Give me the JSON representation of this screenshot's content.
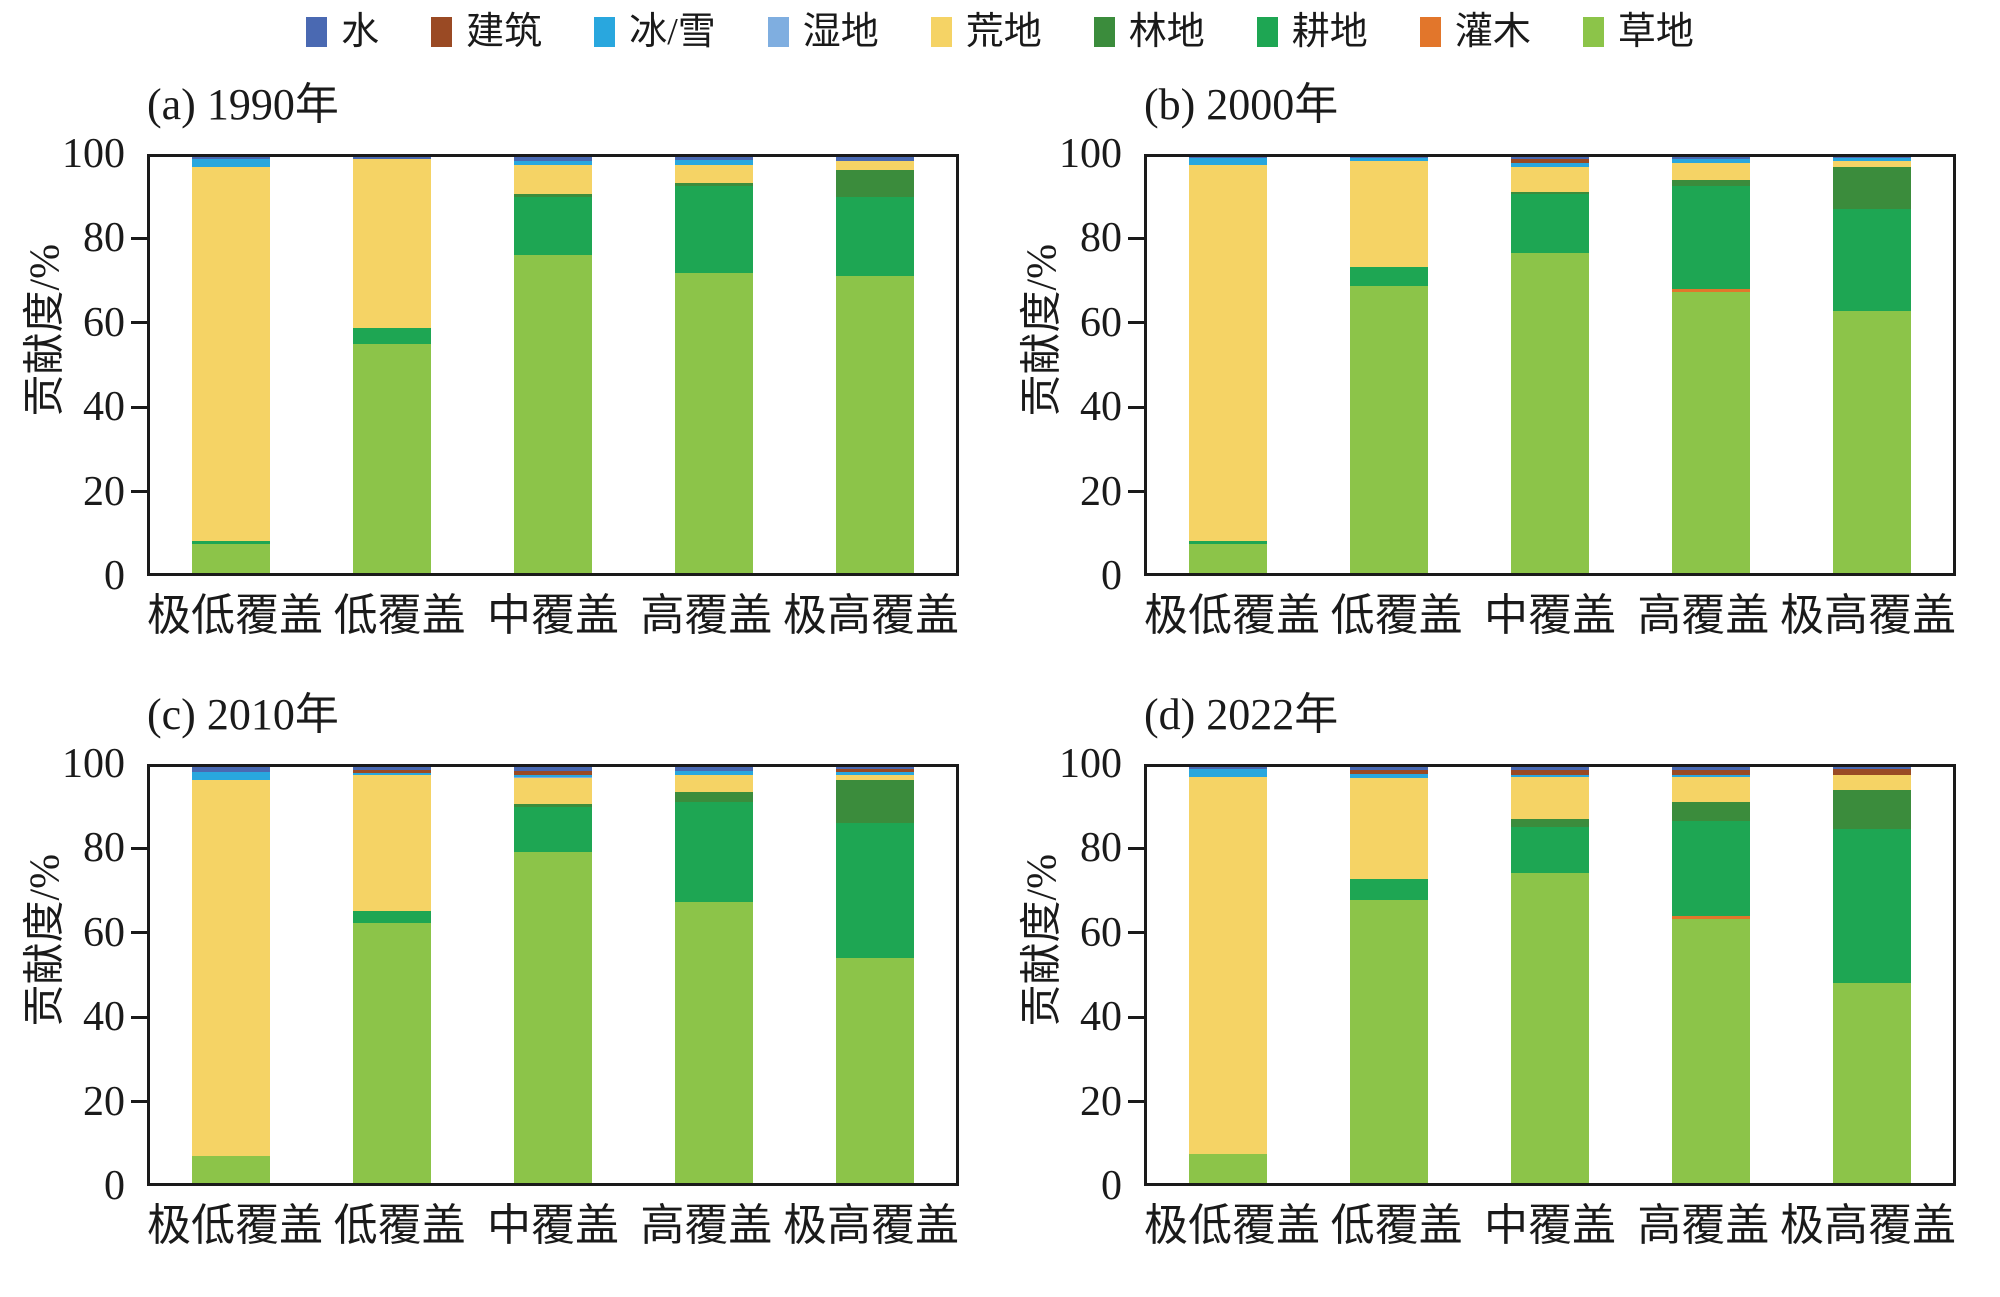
{
  "legend": {
    "items": [
      {
        "label": "水",
        "color": "#4A69B2"
      },
      {
        "label": "建筑",
        "color": "#9A4A24"
      },
      {
        "label": "冰/雪",
        "color": "#29A7DE"
      },
      {
        "label": "湿地",
        "color": "#7FAEE0"
      },
      {
        "label": "荒地",
        "color": "#F5D365"
      },
      {
        "label": "林地",
        "color": "#3B8C3C"
      },
      {
        "label": "耕地",
        "color": "#1EA653"
      },
      {
        "label": "灌木",
        "color": "#E2762B"
      },
      {
        "label": "草地",
        "color": "#8CC449"
      }
    ]
  },
  "axis": {
    "ylabel": "贡献度/%",
    "y_ticks": [
      0,
      20,
      40,
      60,
      80,
      100
    ],
    "categories": [
      "极低覆盖",
      "低覆盖",
      "中覆盖",
      "高覆盖",
      "极高覆盖"
    ]
  },
  "chart_data": [
    {
      "type": "bar",
      "stacked": true,
      "title": "(a) 1990年",
      "ylabel": "贡献度/%",
      "ylim": [
        0,
        100
      ],
      "grid": false,
      "legend_position": "top",
      "categories": [
        "极低覆盖",
        "低覆盖",
        "中覆盖",
        "高覆盖",
        "极高覆盖"
      ],
      "series": [
        {
          "name": "草地",
          "color": "#8CC449",
          "values": [
            7.0,
            55.0,
            76.5,
            72.0,
            71.5
          ]
        },
        {
          "name": "灌木",
          "color": "#E2762B",
          "values": [
            0,
            0,
            0,
            0,
            0
          ]
        },
        {
          "name": "耕地",
          "color": "#1EA653",
          "values": [
            0.8,
            4.0,
            14.0,
            21.0,
            19.0
          ]
        },
        {
          "name": "林地",
          "color": "#3B8C3C",
          "values": [
            0,
            0,
            0.5,
            0.7,
            6.5
          ]
        },
        {
          "name": "荒地",
          "color": "#F5D365",
          "values": [
            89.7,
            40.5,
            7.0,
            4.3,
            2.0
          ]
        },
        {
          "name": "湿地",
          "color": "#7FAEE0",
          "values": [
            0,
            0,
            0,
            0,
            0
          ]
        },
        {
          "name": "冰/雪",
          "color": "#29A7DE",
          "values": [
            2.0,
            0,
            1.0,
            1.2,
            0
          ]
        },
        {
          "name": "建筑",
          "color": "#9A4A24",
          "values": [
            0,
            0,
            0,
            0,
            0
          ]
        },
        {
          "name": "水",
          "color": "#4A69B2",
          "values": [
            0.5,
            0.5,
            1.0,
            0.8,
            1.0
          ]
        }
      ]
    },
    {
      "type": "bar",
      "stacked": true,
      "title": "(b) 2000年",
      "ylabel": "贡献度/%",
      "ylim": [
        0,
        100
      ],
      "grid": false,
      "legend_position": "top",
      "categories": [
        "极低覆盖",
        "低覆盖",
        "中覆盖",
        "高覆盖",
        "极高覆盖"
      ],
      "series": [
        {
          "name": "草地",
          "color": "#8CC449",
          "values": [
            7.0,
            69.0,
            77.0,
            67.5,
            63.0
          ]
        },
        {
          "name": "灌木",
          "color": "#E2762B",
          "values": [
            0,
            0,
            0,
            0.7,
            0
          ]
        },
        {
          "name": "耕地",
          "color": "#1EA653",
          "values": [
            0.8,
            4.5,
            14.0,
            24.8,
            24.5
          ]
        },
        {
          "name": "林地",
          "color": "#3B8C3C",
          "values": [
            0,
            0,
            0.7,
            1.5,
            10.0
          ]
        },
        {
          "name": "荒地",
          "color": "#F5D365",
          "values": [
            90.2,
            25.5,
            6.0,
            4.0,
            1.5
          ]
        },
        {
          "name": "湿地",
          "color": "#7FAEE0",
          "values": [
            0,
            0,
            0,
            0,
            0
          ]
        },
        {
          "name": "冰/雪",
          "color": "#29A7DE",
          "values": [
            1.7,
            0.7,
            0.8,
            1.0,
            0.7
          ]
        },
        {
          "name": "建筑",
          "color": "#9A4A24",
          "values": [
            0,
            0,
            1.0,
            0,
            0
          ]
        },
        {
          "name": "水",
          "color": "#4A69B2",
          "values": [
            0.3,
            0.3,
            0.5,
            0.5,
            0.3
          ]
        }
      ]
    },
    {
      "type": "bar",
      "stacked": true,
      "title": "(c) 2010年",
      "ylabel": "贡献度/%",
      "ylim": [
        0,
        100
      ],
      "grid": false,
      "legend_position": "top",
      "categories": [
        "极低覆盖",
        "低覆盖",
        "中覆盖",
        "高覆盖",
        "极高覆盖"
      ],
      "series": [
        {
          "name": "草地",
          "color": "#8CC449",
          "values": [
            6.5,
            62.5,
            79.5,
            67.5,
            54.0
          ]
        },
        {
          "name": "灌木",
          "color": "#E2762B",
          "values": [
            0,
            0,
            0,
            0,
            0
          ]
        },
        {
          "name": "耕地",
          "color": "#1EA653",
          "values": [
            0,
            3.0,
            11.0,
            24.0,
            32.5
          ]
        },
        {
          "name": "林地",
          "color": "#3B8C3C",
          "values": [
            0,
            0,
            0.5,
            2.5,
            10.5
          ]
        },
        {
          "name": "荒地",
          "color": "#F5D365",
          "values": [
            90.5,
            32.5,
            6.3,
            4.0,
            1.2
          ]
        },
        {
          "name": "湿地",
          "color": "#7FAEE0",
          "values": [
            0,
            0,
            0.4,
            0,
            0
          ]
        },
        {
          "name": "冰/雪",
          "color": "#29A7DE",
          "values": [
            1.8,
            0.6,
            0.5,
            1.0,
            0.5
          ]
        },
        {
          "name": "建筑",
          "color": "#9A4A24",
          "values": [
            0,
            0.8,
            0.8,
            0,
            0.8
          ]
        },
        {
          "name": "水",
          "color": "#4A69B2",
          "values": [
            1.2,
            0.6,
            1.0,
            1.0,
            0.5
          ]
        }
      ]
    },
    {
      "type": "bar",
      "stacked": true,
      "title": "(d) 2022年",
      "ylabel": "贡献度/%",
      "ylim": [
        0,
        100
      ],
      "grid": false,
      "legend_position": "top",
      "categories": [
        "极低覆盖",
        "低覆盖",
        "中覆盖",
        "高覆盖",
        "极高覆盖"
      ],
      "series": [
        {
          "name": "草地",
          "color": "#8CC449",
          "values": [
            7.0,
            68.0,
            74.5,
            63.5,
            48.0
          ]
        },
        {
          "name": "灌木",
          "color": "#E2762B",
          "values": [
            0,
            0,
            0,
            0.7,
            0
          ]
        },
        {
          "name": "耕地",
          "color": "#1EA653",
          "values": [
            0,
            5.0,
            11.0,
            22.8,
            37.0
          ]
        },
        {
          "name": "林地",
          "color": "#3B8C3C",
          "values": [
            0,
            0,
            2.0,
            4.5,
            9.5
          ]
        },
        {
          "name": "荒地",
          "color": "#F5D365",
          "values": [
            90.5,
            24.3,
            10.0,
            6.0,
            3.5
          ]
        },
        {
          "name": "湿地",
          "color": "#7FAEE0",
          "values": [
            0,
            0,
            0,
            0,
            0
          ]
        },
        {
          "name": "冰/雪",
          "color": "#29A7DE",
          "values": [
            2.0,
            1.0,
            0.5,
            0.7,
            0
          ]
        },
        {
          "name": "建筑",
          "color": "#9A4A24",
          "values": [
            0,
            1.0,
            1.2,
            1.0,
            1.5
          ]
        },
        {
          "name": "水",
          "color": "#4A69B2",
          "values": [
            0.5,
            0.7,
            0.8,
            0.8,
            0.5
          ]
        }
      ]
    }
  ]
}
